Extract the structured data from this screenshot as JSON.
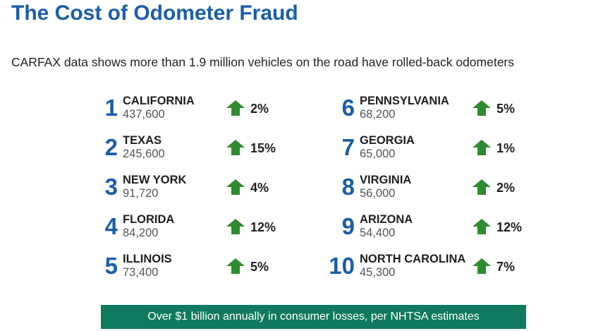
{
  "title": "The Cost of Odometer Fraud",
  "subtitle": "CARFAX data shows more than 1.9 million vehicles on the road have rolled-back odometers",
  "colors": {
    "title": "#1a5ea8",
    "rank": "#1a5ea8",
    "arrow": "#2e8b2e",
    "banner": "#0f7a5e"
  },
  "icons": {
    "trend": "up-arrow-icon"
  },
  "left_column": [
    {
      "rank": "1",
      "state": "CALIFORNIA",
      "count": "437,600",
      "change": "2%"
    },
    {
      "rank": "2",
      "state": "TEXAS",
      "count": "245,600",
      "change": "15%"
    },
    {
      "rank": "3",
      "state": "NEW YORK",
      "count": "91,720",
      "change": "4%"
    },
    {
      "rank": "4",
      "state": "FLORIDA",
      "count": "84,200",
      "change": "12%"
    },
    {
      "rank": "5",
      "state": "ILLINOIS",
      "count": "73,400",
      "change": "5%"
    }
  ],
  "right_column": [
    {
      "rank": "6",
      "state": "PENNSYLVANIA",
      "count": "68,200",
      "change": "5%"
    },
    {
      "rank": "7",
      "state": "GEORGIA",
      "count": "65,000",
      "change": "1%"
    },
    {
      "rank": "8",
      "state": "VIRGINIA",
      "count": "56,000",
      "change": "2%"
    },
    {
      "rank": "9",
      "state": "ARIZONA",
      "count": "54,400",
      "change": "12%"
    },
    {
      "rank": "10",
      "state": "NORTH CAROLINA",
      "count": "45,300",
      "change": "7%"
    }
  ],
  "banner": "Over $1 billion annually in consumer losses, per NHTSA estimates"
}
